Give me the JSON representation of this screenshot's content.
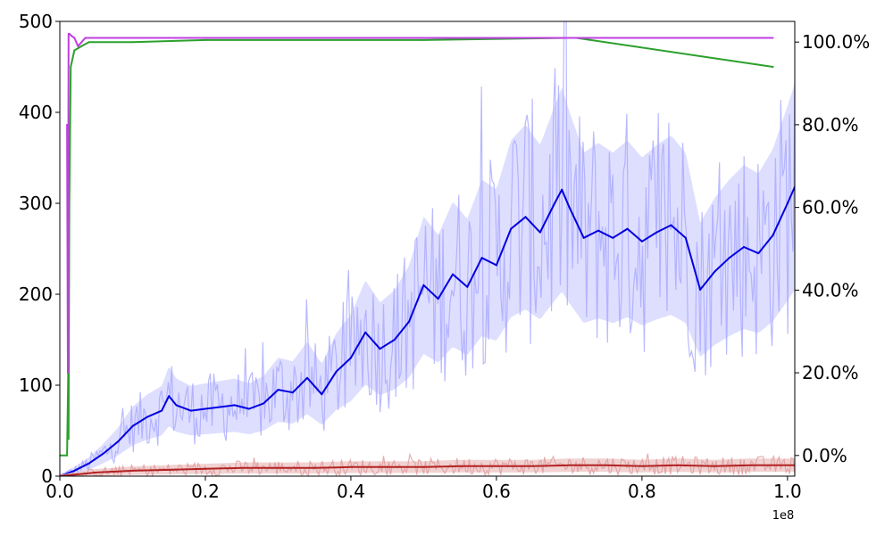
{
  "chart_data": {
    "type": "line",
    "title": "",
    "xlabel": "",
    "ylabel": "",
    "y2label": "",
    "x_offset_label": "1e8",
    "xlim": [
      0,
      1.01
    ],
    "ylim": [
      0,
      500
    ],
    "y2lim": [
      -0.05,
      1.05
    ],
    "grid": false,
    "legend": "none",
    "x_ticks": [
      "0.0",
      "0.2",
      "0.4",
      "0.6",
      "0.8",
      "1.0"
    ],
    "x_tick_values": [
      0,
      0.2,
      0.4,
      0.6,
      0.8,
      1.0
    ],
    "y_ticks": [
      "0",
      "100",
      "200",
      "300",
      "400",
      "500"
    ],
    "y_tick_values": [
      0,
      100,
      200,
      300,
      400,
      500
    ],
    "y2_ticks": [
      "0.0%",
      "20.0%",
      "40.0%",
      "60.0%",
      "80.0%",
      "100.0%"
    ],
    "y2_tick_values": [
      0,
      0.2,
      0.4,
      0.6,
      0.8,
      1.0
    ],
    "series": [
      {
        "axis": "left",
        "color": "#0000e0",
        "band_color": "#c8c8ff",
        "raw_color": "#a8a8ff",
        "noise": 0.35,
        "x": [
          0,
          0.02,
          0.04,
          0.06,
          0.08,
          0.1,
          0.12,
          0.14,
          0.15,
          0.16,
          0.18,
          0.2,
          0.22,
          0.24,
          0.26,
          0.28,
          0.3,
          0.32,
          0.34,
          0.36,
          0.38,
          0.4,
          0.42,
          0.44,
          0.46,
          0.48,
          0.5,
          0.52,
          0.54,
          0.56,
          0.58,
          0.6,
          0.62,
          0.64,
          0.66,
          0.68,
          0.69,
          0.7,
          0.72,
          0.74,
          0.76,
          0.78,
          0.8,
          0.82,
          0.84,
          0.86,
          0.88,
          0.9,
          0.92,
          0.94,
          0.96,
          0.98,
          1.0,
          1.01
        ],
        "values": [
          0,
          6,
          14,
          25,
          38,
          55,
          65,
          72,
          88,
          78,
          72,
          74,
          76,
          78,
          74,
          80,
          95,
          92,
          108,
          90,
          115,
          130,
          158,
          140,
          150,
          170,
          210,
          195,
          222,
          208,
          240,
          232,
          272,
          285,
          268,
          300,
          315,
          296,
          262,
          270,
          262,
          272,
          258,
          268,
          276,
          262,
          205,
          225,
          240,
          252,
          245,
          265,
          300,
          318
        ]
      },
      {
        "axis": "left",
        "color": "#b22222",
        "band_color": "#e8b4b4",
        "raw_color": "#e09a9a",
        "noise": 0.45,
        "x": [
          0,
          0.05,
          0.1,
          0.15,
          0.2,
          0.25,
          0.3,
          0.35,
          0.4,
          0.45,
          0.5,
          0.55,
          0.6,
          0.65,
          0.7,
          0.75,
          0.8,
          0.85,
          0.9,
          0.95,
          1.0,
          1.01
        ],
        "values": [
          0,
          4,
          6,
          7,
          8,
          9,
          9,
          9,
          10,
          10,
          10,
          11,
          11,
          11,
          12,
          12,
          11,
          12,
          11,
          12,
          12,
          12
        ]
      },
      {
        "axis": "right",
        "color": "#2ca02c",
        "x": [
          0,
          0.01,
          0.0115,
          0.012,
          0.013,
          0.015,
          0.02,
          0.03,
          0.04,
          0.1,
          0.2,
          0.5,
          0.7,
          0.71,
          0.98
        ],
        "values": [
          0,
          0,
          0.2,
          0.04,
          0.6,
          0.94,
          0.98,
          0.99,
          1.0,
          1.0,
          1.005,
          1.005,
          1.01,
          1.01,
          0.94
        ]
      },
      {
        "axis": "right",
        "color": "#bf3fdf",
        "x": [
          0.01,
          0.011,
          0.012,
          0.013,
          0.016,
          0.02,
          0.025,
          0.03,
          0.035,
          0.5,
          0.98
        ],
        "values": [
          0.8,
          0.2,
          1.02,
          1.02,
          1.015,
          1.01,
          0.99,
          1.0,
          1.01,
          1.01,
          1.01
        ]
      }
    ]
  }
}
